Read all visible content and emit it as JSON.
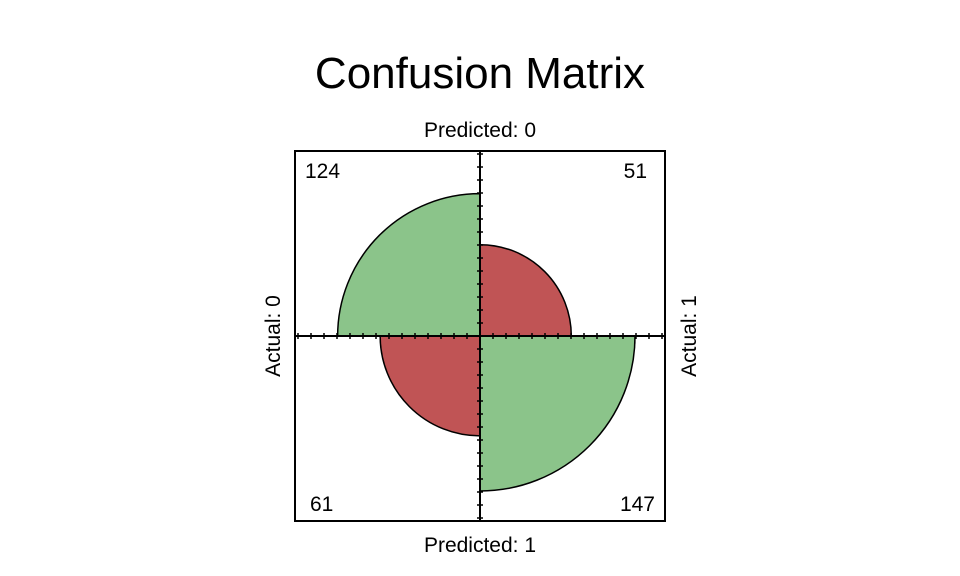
{
  "chart_data": {
    "type": "fourfold",
    "title": "Confusion Matrix",
    "labels": {
      "top": "Predicted: 0",
      "bottom": "Predicted: 1",
      "left": "Actual: 0",
      "right": "Actual: 1"
    },
    "cells": [
      {
        "name": "top-left",
        "count": "124",
        "value": 124,
        "quadrant": "top-left",
        "color": "#8BC48A"
      },
      {
        "name": "top-right",
        "count": "51",
        "value": 51,
        "quadrant": "top-right",
        "color": "#C05455"
      },
      {
        "name": "bottom-left",
        "count": "61",
        "value": 61,
        "quadrant": "bottom-left",
        "color": "#C05455"
      },
      {
        "name": "bottom-right",
        "count": "147",
        "value": 147,
        "quadrant": "bottom-right",
        "color": "#8BC48A"
      }
    ],
    "colors": {
      "correct": "#8BC48A",
      "incorrect": "#C05455",
      "outline": "#000000"
    }
  }
}
